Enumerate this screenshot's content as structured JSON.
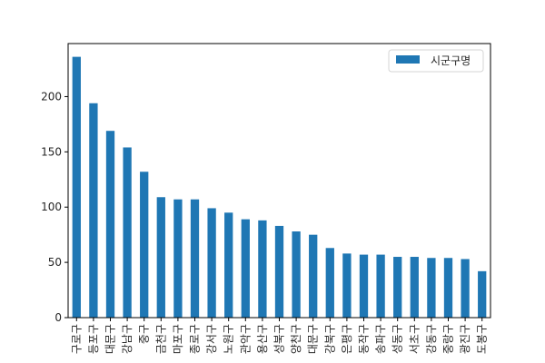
{
  "chart_data": {
    "type": "bar",
    "categories": [
      "구로구",
      "등포구",
      "대문구",
      "강남구",
      "중구",
      "금천구",
      "마포구",
      "종로구",
      "강서구",
      "노원구",
      "관악구",
      "용산구",
      "성북구",
      "양천구",
      "대문구",
      "강북구",
      "은평구",
      "동작구",
      "송파구",
      "성동구",
      "서초구",
      "강동구",
      "중랑구",
      "광진구",
      "도봉구"
    ],
    "series": [
      {
        "name": "시군구명",
        "color": "#1f77b4",
        "values": [
          236,
          194,
          169,
          154,
          132,
          109,
          107,
          107,
          99,
          95,
          89,
          88,
          83,
          78,
          75,
          63,
          58,
          57,
          57,
          55,
          55,
          54,
          54,
          53,
          42
        ]
      }
    ],
    "ylim": [
      0,
      248
    ],
    "yticks": [
      0,
      50,
      100,
      150,
      200
    ],
    "legend": {
      "position": "top-right"
    },
    "grid": false
  }
}
